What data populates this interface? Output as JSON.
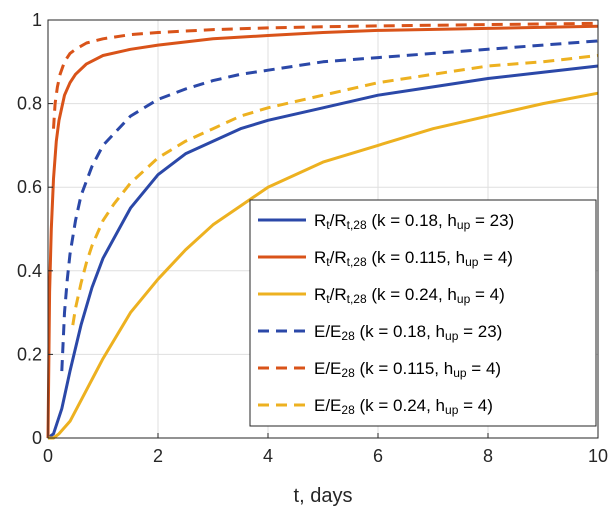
{
  "chart_data": {
    "type": "line",
    "xlabel": "t, days",
    "ylabel": "",
    "xlim": [
      0,
      10
    ],
    "ylim": [
      0,
      1
    ],
    "xticks": [
      "0",
      "2",
      "4",
      "6",
      "8",
      "10"
    ],
    "yticks": [
      "0",
      "0.2",
      "0.4",
      "0.6",
      "0.8",
      "1"
    ],
    "grid": true,
    "legend_position": "bottom-right",
    "series": [
      {
        "legend": {
          "main": "R",
          "sub1": "t",
          "mid": "/R",
          "sub2": "t,28",
          "params_a": " (k = 0.18, h",
          "params_sub": "up",
          "params_b": " = 23)"
        },
        "color": "#2b48a8",
        "dash": "solid",
        "x": [
          0,
          0.1,
          0.25,
          0.4,
          0.6,
          0.8,
          1,
          1.5,
          2,
          2.5,
          3,
          3.5,
          4,
          5,
          6,
          7,
          8,
          9,
          10
        ],
        "y": [
          0,
          0.01,
          0.07,
          0.16,
          0.27,
          0.36,
          0.43,
          0.55,
          0.63,
          0.68,
          0.71,
          0.74,
          0.76,
          0.79,
          0.82,
          0.84,
          0.86,
          0.875,
          0.89
        ]
      },
      {
        "legend": {
          "main": "R",
          "sub1": "t",
          "mid": "/R",
          "sub2": "t,28",
          "params_a": " (k = 0.115, h",
          "params_sub": "up",
          "params_b": " = 4)"
        },
        "color": "#d95319",
        "dash": "solid",
        "x": [
          0,
          0.03,
          0.06,
          0.1,
          0.15,
          0.2,
          0.3,
          0.4,
          0.5,
          0.7,
          1,
          1.5,
          2,
          3,
          4,
          5,
          6,
          8,
          10
        ],
        "y": [
          0,
          0.35,
          0.5,
          0.62,
          0.71,
          0.76,
          0.82,
          0.85,
          0.87,
          0.895,
          0.915,
          0.93,
          0.94,
          0.955,
          0.963,
          0.97,
          0.975,
          0.98,
          0.985
        ]
      },
      {
        "legend": {
          "main": "R",
          "sub1": "t",
          "mid": "/R",
          "sub2": "t,28",
          "params_a": " (k = 0.24, h",
          "params_sub": "up",
          "params_b": " = 4)"
        },
        "color": "#edb120",
        "dash": "solid",
        "x": [
          0,
          0.1,
          0.2,
          0.4,
          0.6,
          0.8,
          1,
          1.5,
          2,
          2.5,
          3,
          3.5,
          4,
          5,
          6,
          7,
          8,
          9,
          10
        ],
        "y": [
          0,
          0.0,
          0.01,
          0.04,
          0.09,
          0.14,
          0.19,
          0.3,
          0.38,
          0.45,
          0.51,
          0.555,
          0.6,
          0.66,
          0.7,
          0.74,
          0.77,
          0.8,
          0.825
        ]
      },
      {
        "legend": {
          "main": "E/E",
          "sub1": "28",
          "mid": "",
          "sub2": "",
          "params_a": " (k = 0.18, h",
          "params_sub": "up",
          "params_b": " = 23)"
        },
        "color": "#2b48a8",
        "dash": "dashed",
        "x": [
          0.25,
          0.3,
          0.35,
          0.4,
          0.5,
          0.6,
          0.8,
          1,
          1.5,
          2,
          2.5,
          3,
          3.5,
          4,
          5,
          6,
          7,
          8,
          9,
          10
        ],
        "y": [
          0.16,
          0.3,
          0.38,
          0.44,
          0.52,
          0.58,
          0.65,
          0.7,
          0.77,
          0.81,
          0.835,
          0.855,
          0.87,
          0.88,
          0.9,
          0.91,
          0.92,
          0.93,
          0.94,
          0.95
        ]
      },
      {
        "legend": {
          "main": "E/E",
          "sub1": "28",
          "mid": "",
          "sub2": "",
          "params_a": " (k = 0.115, h",
          "params_sub": "up",
          "params_b": " = 4)"
        },
        "color": "#d95319",
        "dash": "dashed",
        "x": [
          0.1,
          0.13,
          0.17,
          0.22,
          0.3,
          0.4,
          0.5,
          0.7,
          1,
          1.5,
          2,
          3,
          4,
          5,
          6,
          8,
          10
        ],
        "y": [
          0.74,
          0.8,
          0.84,
          0.87,
          0.9,
          0.92,
          0.93,
          0.945,
          0.955,
          0.965,
          0.97,
          0.977,
          0.981,
          0.984,
          0.986,
          0.989,
          0.992
        ]
      },
      {
        "legend": {
          "main": "E/E",
          "sub1": "28",
          "mid": "",
          "sub2": "",
          "params_a": " (k = 0.24, h",
          "params_sub": "up",
          "params_b": " = 4)"
        },
        "color": "#edb120",
        "dash": "dashed",
        "x": [
          0.45,
          0.5,
          0.6,
          0.7,
          0.8,
          1,
          1.2,
          1.5,
          2,
          2.5,
          3,
          3.5,
          4,
          5,
          6,
          7,
          8,
          9,
          10
        ],
        "y": [
          0.27,
          0.31,
          0.37,
          0.42,
          0.46,
          0.52,
          0.56,
          0.61,
          0.67,
          0.71,
          0.74,
          0.77,
          0.79,
          0.82,
          0.85,
          0.87,
          0.89,
          0.9,
          0.915
        ]
      }
    ]
  }
}
